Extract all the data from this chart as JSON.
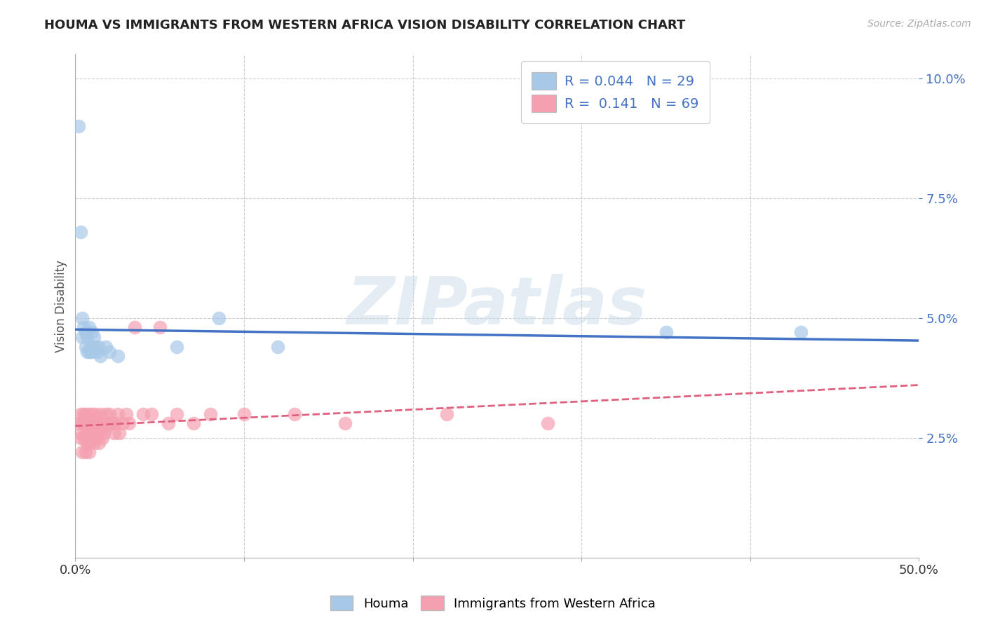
{
  "title": "HOUMA VS IMMIGRANTS FROM WESTERN AFRICA VISION DISABILITY CORRELATION CHART",
  "source": "Source: ZipAtlas.com",
  "ylabel": "Vision Disability",
  "xlim": [
    0.0,
    0.5
  ],
  "ylim": [
    0.0,
    0.105
  ],
  "xticks": [
    0.0,
    0.1,
    0.2,
    0.3,
    0.4,
    0.5
  ],
  "xticklabels": [
    "0.0%",
    "",
    "",
    "",
    "",
    "50.0%"
  ],
  "yticks": [
    0.025,
    0.05,
    0.075,
    0.1
  ],
  "yticklabels": [
    "2.5%",
    "5.0%",
    "7.5%",
    "10.0%"
  ],
  "houma_R": "0.044",
  "houma_N": "29",
  "immigrants_R": "0.141",
  "immigrants_N": "69",
  "houma_color": "#a8c8e8",
  "houma_edge_color": "#7aaed0",
  "houma_line_color": "#4472c4",
  "immigrants_color": "#f4a0b0",
  "immigrants_edge_color": "#e07090",
  "immigrants_line_color": "#e06080",
  "watermark_color": "#d8e8f0",
  "background_color": "#ffffff",
  "grid_color": "#cccccc",
  "houma_scatter_x": [
    0.002,
    0.003,
    0.004,
    0.004,
    0.005,
    0.006,
    0.006,
    0.007,
    0.007,
    0.008,
    0.008,
    0.009,
    0.009,
    0.01,
    0.01,
    0.01,
    0.011,
    0.012,
    0.013,
    0.014,
    0.015,
    0.018,
    0.02,
    0.025,
    0.06,
    0.085,
    0.12,
    0.35,
    0.43
  ],
  "houma_scatter_y": [
    0.09,
    0.068,
    0.05,
    0.046,
    0.048,
    0.047,
    0.044,
    0.046,
    0.043,
    0.048,
    0.043,
    0.044,
    0.043,
    0.047,
    0.044,
    0.043,
    0.046,
    0.044,
    0.043,
    0.044,
    0.042,
    0.044,
    0.043,
    0.042,
    0.044,
    0.05,
    0.044,
    0.047,
    0.047
  ],
  "immigrants_scatter_x": [
    0.002,
    0.003,
    0.003,
    0.004,
    0.004,
    0.004,
    0.005,
    0.005,
    0.005,
    0.006,
    0.006,
    0.006,
    0.006,
    0.007,
    0.007,
    0.007,
    0.008,
    0.008,
    0.008,
    0.008,
    0.008,
    0.009,
    0.009,
    0.009,
    0.01,
    0.01,
    0.01,
    0.011,
    0.011,
    0.011,
    0.012,
    0.012,
    0.012,
    0.013,
    0.013,
    0.014,
    0.014,
    0.015,
    0.015,
    0.016,
    0.016,
    0.017,
    0.018,
    0.018,
    0.019,
    0.02,
    0.02,
    0.021,
    0.022,
    0.023,
    0.024,
    0.025,
    0.026,
    0.028,
    0.03,
    0.032,
    0.035,
    0.04,
    0.045,
    0.05,
    0.055,
    0.06,
    0.07,
    0.08,
    0.1,
    0.13,
    0.16,
    0.22,
    0.28
  ],
  "immigrants_scatter_y": [
    0.028,
    0.03,
    0.025,
    0.028,
    0.026,
    0.022,
    0.03,
    0.028,
    0.025,
    0.03,
    0.027,
    0.025,
    0.022,
    0.028,
    0.026,
    0.024,
    0.03,
    0.028,
    0.026,
    0.024,
    0.022,
    0.028,
    0.026,
    0.025,
    0.03,
    0.027,
    0.025,
    0.028,
    0.026,
    0.024,
    0.03,
    0.028,
    0.025,
    0.028,
    0.026,
    0.026,
    0.024,
    0.03,
    0.027,
    0.028,
    0.025,
    0.026,
    0.03,
    0.027,
    0.028,
    0.03,
    0.028,
    0.028,
    0.028,
    0.026,
    0.028,
    0.03,
    0.026,
    0.028,
    0.03,
    0.028,
    0.048,
    0.03,
    0.03,
    0.048,
    0.028,
    0.03,
    0.028,
    0.03,
    0.03,
    0.03,
    0.028,
    0.03,
    0.028
  ]
}
